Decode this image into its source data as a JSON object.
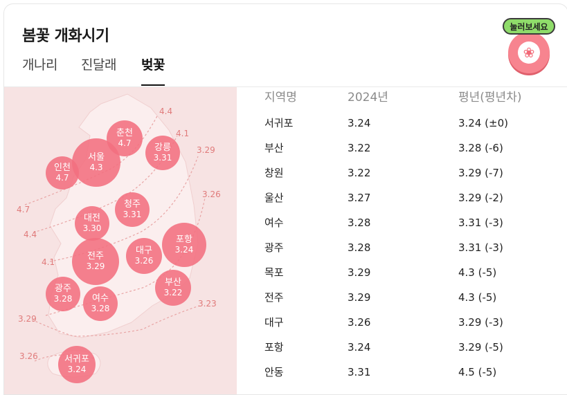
{
  "header": {
    "title": "봄꽃 개화시기"
  },
  "tabs": [
    {
      "label": "개나리",
      "active": false
    },
    {
      "label": "진달래",
      "active": false
    },
    {
      "label": "벚꽃",
      "active": true
    }
  ],
  "badge": {
    "label": "눌러보세요",
    "icon": "flower-icon"
  },
  "map": {
    "cities": [
      {
        "name": "춘천",
        "date": "4.7"
      },
      {
        "name": "서울",
        "date": "4.3"
      },
      {
        "name": "강릉",
        "date": "3.31"
      },
      {
        "name": "인천",
        "date": "4.7"
      },
      {
        "name": "청주",
        "date": "3.31"
      },
      {
        "name": "대전",
        "date": "3.30"
      },
      {
        "name": "포항",
        "date": "3.24"
      },
      {
        "name": "전주",
        "date": "3.29"
      },
      {
        "name": "대구",
        "date": "3.26"
      },
      {
        "name": "부산",
        "date": "3.22"
      },
      {
        "name": "광주",
        "date": "3.28"
      },
      {
        "name": "여수",
        "date": "3.28"
      },
      {
        "name": "서귀포",
        "date": "3.24"
      }
    ],
    "isolines": [
      "4.4",
      "4.1",
      "3.29",
      "3.26",
      "4.7",
      "4.4",
      "4.1",
      "3.23",
      "3.29",
      "3.26"
    ]
  },
  "table": {
    "headers": [
      "지역명",
      "2024년",
      "평년(평년차)"
    ],
    "rows": [
      [
        "서귀포",
        "3.24",
        "3.24 (±0)"
      ],
      [
        "부산",
        "3.22",
        "3.28 (-6)"
      ],
      [
        "창원",
        "3.22",
        "3.29 (-7)"
      ],
      [
        "울산",
        "3.27",
        "3.29 (-2)"
      ],
      [
        "여수",
        "3.28",
        "3.31 (-3)"
      ],
      [
        "광주",
        "3.28",
        "3.31 (-3)"
      ],
      [
        "목포",
        "3.29",
        "4.3 (-5)"
      ],
      [
        "전주",
        "3.29",
        "4.3 (-5)"
      ],
      [
        "대구",
        "3.26",
        "3.29 (-3)"
      ],
      [
        "포항",
        "3.24",
        "3.29 (-5)"
      ],
      [
        "안동",
        "3.31",
        "4.5 (-5)"
      ]
    ]
  },
  "colors": {
    "accent": "#f37080",
    "map_bg": "#f7e3e3",
    "badge_green": "#8fdc6a"
  }
}
